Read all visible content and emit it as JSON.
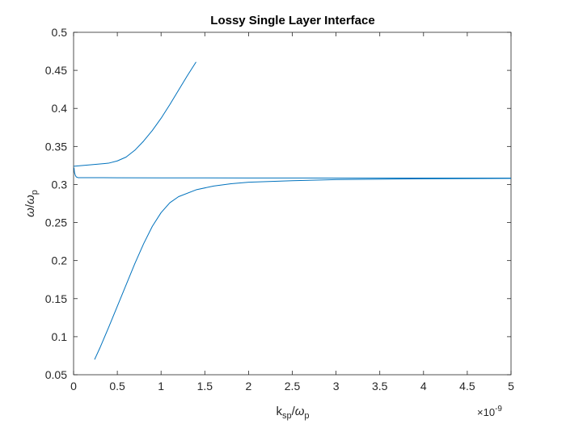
{
  "chart_data": {
    "type": "line",
    "title": "Lossy Single Layer Interface",
    "xlabel": {
      "main": "k",
      "sub": "sp",
      "sep": "/",
      "omega": "ω",
      "omega_sub": "p"
    },
    "ylabel": {
      "main": "ω",
      "sep": "/",
      "omega": "ω",
      "omega_sub": "p"
    },
    "x_exponent": {
      "base": "×10",
      "power": "-9"
    },
    "xlim": [
      0,
      5
    ],
    "ylim": [
      0.05,
      0.5
    ],
    "xticks": [
      0,
      0.5,
      1,
      1.5,
      2,
      2.5,
      3,
      3.5,
      4,
      4.5,
      5
    ],
    "xtick_labels": [
      "0",
      "0.5",
      "1",
      "1.5",
      "2",
      "2.5",
      "3",
      "3.5",
      "4",
      "4.5",
      "5"
    ],
    "yticks": [
      0.05,
      0.1,
      0.15,
      0.2,
      0.25,
      0.3,
      0.35,
      0.4,
      0.45,
      0.5
    ],
    "ytick_labels": [
      "0.05",
      "0.1",
      "0.15",
      "0.2",
      "0.25",
      "0.3",
      "0.35",
      "0.4",
      "0.45",
      "0.5"
    ],
    "grid": false,
    "line_color": "#0072bd",
    "series": [
      {
        "x": [
          0,
          0.2,
          0.4,
          0.5,
          0.6,
          0.7,
          0.8,
          0.9,
          1.0,
          1.1,
          1.2,
          1.3,
          1.4
        ],
        "y": [
          0.324,
          0.326,
          0.328,
          0.331,
          0.336,
          0.345,
          0.357,
          0.371,
          0.387,
          0.405,
          0.424,
          0.443,
          0.461
        ]
      },
      {
        "x": [
          0.005,
          0.01,
          0.02,
          0.03,
          0.05,
          0.1,
          0.2,
          0.5,
          1,
          2,
          3,
          4,
          5
        ],
        "y": [
          0.322,
          0.316,
          0.312,
          0.31,
          0.309,
          0.309,
          0.309,
          0.3088,
          0.3087,
          0.3086,
          0.3085,
          0.3085,
          0.3085
        ]
      },
      {
        "x": [
          0.24,
          0.3,
          0.4,
          0.5,
          0.6,
          0.7,
          0.8,
          0.9,
          1.0,
          1.1,
          1.2,
          1.4,
          1.6,
          1.8,
          2.0,
          2.5,
          3.0,
          3.5,
          4.0,
          4.5,
          5.0
        ],
        "y": [
          0.07,
          0.085,
          0.112,
          0.14,
          0.168,
          0.196,
          0.222,
          0.245,
          0.263,
          0.276,
          0.284,
          0.293,
          0.298,
          0.301,
          0.303,
          0.305,
          0.3065,
          0.307,
          0.3075,
          0.3078,
          0.308
        ]
      }
    ]
  }
}
